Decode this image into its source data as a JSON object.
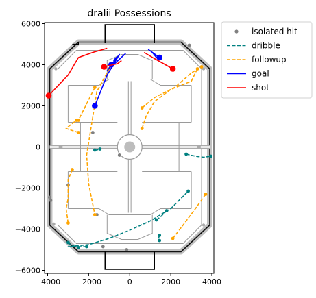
{
  "chart_data": {
    "type": "scatter",
    "title": "dralii Possessions",
    "xlabel": "",
    "ylabel": "",
    "xlim": [
      -4150,
      4100
    ],
    "ylim": [
      -6150,
      6050
    ],
    "xticks": [
      -4000,
      -2000,
      0,
      2000,
      4000
    ],
    "yticks": [
      6000,
      4000,
      2000,
      0,
      -2000,
      -4000,
      -6000
    ],
    "grid": false,
    "legend_position": "outside-top-right",
    "legend": [
      {
        "key": "isolated",
        "label": "isolated hit",
        "color": "#808080",
        "style": "dot"
      },
      {
        "key": "dribble",
        "label": "dribble",
        "color": "#008080",
        "style": "dashed"
      },
      {
        "key": "followup",
        "label": "followup",
        "color": "#ffa500",
        "style": "dashed"
      },
      {
        "key": "goal",
        "label": "goal",
        "color": "#0000ff",
        "style": "solid"
      },
      {
        "key": "shot",
        "label": "shot",
        "color": "#ff0000",
        "style": "solid"
      }
    ],
    "series": [
      {
        "key": "isolated",
        "points": [
          [
            -3900,
            -2450
          ],
          [
            -3850,
            -2600
          ],
          [
            -1800,
            700
          ],
          [
            -3000,
            -1850
          ],
          [
            -1600,
            -3300
          ],
          [
            -1300,
            -4850
          ],
          [
            -500,
            -400
          ],
          [
            -150,
            -5000
          ],
          [
            2900,
            4950
          ]
        ]
      },
      {
        "key": "dribble",
        "lines": [
          [
            [
              -2100,
              -4850
            ],
            [
              -3000,
              -4850
            ],
            [
              -2000,
              -4750
            ],
            [
              -1000,
              -4450
            ],
            [
              0,
              -4050
            ],
            [
              1000,
              -3600
            ],
            [
              2000,
              -3000
            ],
            [
              2850,
              -2150
            ]
          ],
          [
            [
              -3000,
              -4650
            ],
            [
              -2900,
              -4750
            ],
            [
              -2500,
              -4900
            ]
          ],
          [
            [
              -1700,
              -150
            ],
            [
              -1600,
              -150
            ],
            [
              -1450,
              -100
            ]
          ],
          [
            [
              1800,
              -3100
            ],
            [
              1500,
              -3400
            ],
            [
              1300,
              -3550
            ]
          ],
          [
            [
              1450,
              -4300
            ],
            [
              1400,
              -4450
            ],
            [
              1450,
              -4550
            ]
          ],
          [
            [
              2750,
              -350
            ],
            [
              3200,
              -450
            ],
            [
              3600,
              -500
            ],
            [
              3950,
              -450
            ]
          ]
        ]
      },
      {
        "key": "followup",
        "lines": [
          [
            [
              -3000,
              -3700
            ],
            [
              -3100,
              -3000
            ],
            [
              -3000,
              -2500
            ],
            [
              -3000,
              -1600
            ],
            [
              -2800,
              -1100
            ]
          ],
          [
            [
              -1700,
              2900
            ],
            [
              -2200,
              1900
            ],
            [
              -2500,
              1300
            ]
          ],
          [
            [
              -2500,
              700
            ],
            [
              -3100,
              900
            ],
            [
              -2600,
              1300
            ]
          ],
          [
            [
              -1000,
              3800
            ],
            [
              -1600,
              2700
            ],
            [
              -2100,
              -400
            ],
            [
              -2000,
              -1800
            ],
            [
              -1700,
              -3300
            ]
          ],
          [
            [
              600,
              900
            ],
            [
              800,
              1500
            ],
            [
              1200,
              2200
            ],
            [
              2000,
              2800
            ],
            [
              3000,
              3200
            ],
            [
              3300,
              3800
            ]
          ],
          [
            [
              600,
              1900
            ],
            [
              1200,
              2400
            ],
            [
              2200,
              2900
            ],
            [
              3000,
              3600
            ],
            [
              3500,
              3900
            ]
          ],
          [
            [
              2100,
              -4450
            ],
            [
              2600,
              -3800
            ],
            [
              3200,
              -3000
            ],
            [
              3700,
              -2300
            ]
          ]
        ]
      },
      {
        "key": "goal",
        "lines": [
          [
            [
              -1700,
              2000
            ],
            [
              -1100,
              3500
            ],
            [
              -500,
              4500
            ],
            [
              -900,
              3900
            ],
            [
              -200,
              4550
            ]
          ],
          [
            [
              -1100,
              3700
            ],
            [
              -600,
              4400
            ],
            [
              -800,
              4200
            ]
          ],
          [
            [
              1400,
              4450
            ],
            [
              1300,
              4350
            ],
            [
              1100,
              4600
            ]
          ],
          [
            [
              900,
              4750
            ],
            [
              1450,
              4350
            ]
          ]
        ],
        "points": [
          [
            -1700,
            2000
          ],
          [
            -900,
            4000
          ],
          [
            1450,
            4350
          ]
        ]
      },
      {
        "key": "shot",
        "lines": [
          [
            [
              -3950,
              2500
            ],
            [
              -3000,
              3500
            ],
            [
              -2500,
              4350
            ],
            [
              -1800,
              4600
            ],
            [
              -1100,
              4800
            ]
          ],
          [
            [
              -1250,
              3900
            ],
            [
              -600,
              4050
            ],
            [
              -400,
              4200
            ]
          ],
          [
            [
              700,
              4600
            ],
            [
              1200,
              4300
            ],
            [
              2100,
              3800
            ]
          ]
        ],
        "points": [
          [
            -3950,
            2500
          ],
          [
            -1250,
            3900
          ],
          [
            2100,
            3800
          ]
        ]
      }
    ]
  }
}
